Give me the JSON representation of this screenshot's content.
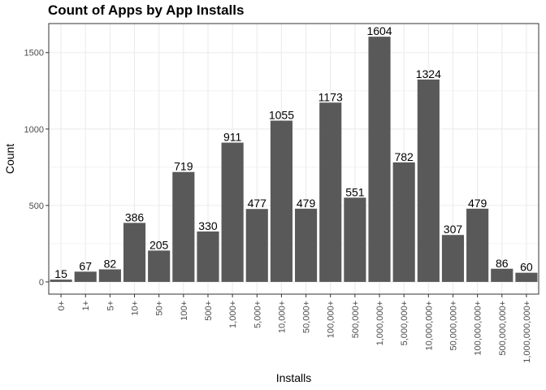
{
  "chart_data": {
    "type": "bar",
    "title": "Count of Apps by App Installs",
    "xlabel": "Installs",
    "ylabel": "Count",
    "categories": [
      "0+",
      "1+",
      "5+",
      "10+",
      "50+",
      "100+",
      "500+",
      "1,000+",
      "5,000+",
      "10,000+",
      "50,000+",
      "100,000+",
      "500,000+",
      "1,000,000+",
      "5,000,000+",
      "10,000,000+",
      "50,000,000+",
      "100,000,000+",
      "500,000,000+",
      "1,000,000,000+"
    ],
    "values": [
      15,
      67,
      82,
      386,
      205,
      719,
      330,
      911,
      477,
      1055,
      479,
      1173,
      551,
      1604,
      782,
      1324,
      307,
      479,
      86,
      60
    ],
    "ylim": [
      -80,
      1690
    ],
    "yticks": [
      0,
      500,
      1000,
      1500
    ],
    "grid": true,
    "bar_color": "#595959",
    "grid_color": "#ebebeb"
  }
}
